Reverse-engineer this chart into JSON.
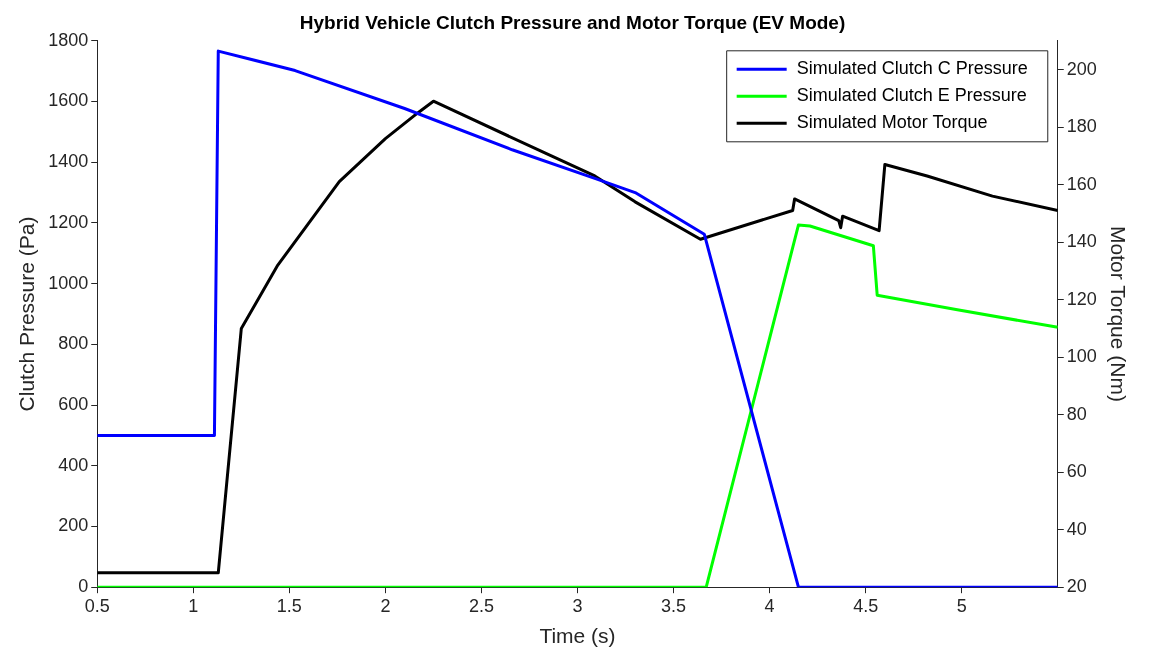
{
  "chart_data": {
    "type": "line",
    "title": "Hybrid Vehicle Clutch Pressure and Motor Torque (EV Mode)",
    "xlabel": "Time (s)",
    "ylabel": "Clutch Pressure (Pa)",
    "y2label": "Motor Torque (Nm)",
    "xlim": [
      0.5,
      5.5
    ],
    "xticks": [
      0.5,
      1,
      1.5,
      2,
      2.5,
      3,
      3.5,
      4,
      4.5,
      5
    ],
    "ylim": [
      0,
      1800
    ],
    "yticks": [
      0,
      200,
      400,
      600,
      800,
      1000,
      1200,
      1400,
      1600,
      1800
    ],
    "y2lim": [
      20,
      210
    ],
    "y2ticks": [
      20,
      40,
      60,
      80,
      100,
      120,
      140,
      160,
      180,
      200
    ],
    "grid": false,
    "legend": "top right",
    "marker": "none",
    "line_style": "solid",
    "series": [
      {
        "name": "Simulated Clutch C Pressure",
        "color": "#0000ff",
        "x": [
          0.5,
          1.11,
          1.13,
          1.53,
          2.1,
          2.66,
          3.09,
          3.3,
          3.66,
          4.15,
          5.5
        ],
        "values": [
          500,
          500,
          1766,
          1702,
          1577,
          1441,
          1347,
          1300,
          1163,
          0,
          0
        ]
      },
      {
        "name": "Simulated Clutch E Pressure",
        "color": "#00ff00",
        "x": [
          0.5,
          3.67,
          4.15,
          4.21,
          4.54,
          4.56,
          4.97,
          5.5
        ],
        "values": [
          0,
          0,
          1193,
          1190,
          1125,
          962,
          915,
          856
        ]
      },
      {
        "name": "Simulated Motor Torque",
        "color": "#000000",
        "axis": "y2",
        "x": [
          0.5,
          1.13,
          1.25,
          1.44,
          1.76,
          2.0,
          2.17,
          2.25,
          2.83,
          3.09,
          3.3,
          3.64,
          4.12,
          4.13,
          4.36,
          4.37,
          4.38,
          4.57,
          4.6,
          4.82,
          5.16,
          5.5
        ],
        "values": [
          25,
          25,
          110,
          132,
          161,
          176,
          185,
          189,
          171,
          163,
          154,
          141,
          151,
          155,
          147.5,
          145,
          149,
          144,
          167,
          163,
          156,
          151
        ]
      }
    ]
  }
}
